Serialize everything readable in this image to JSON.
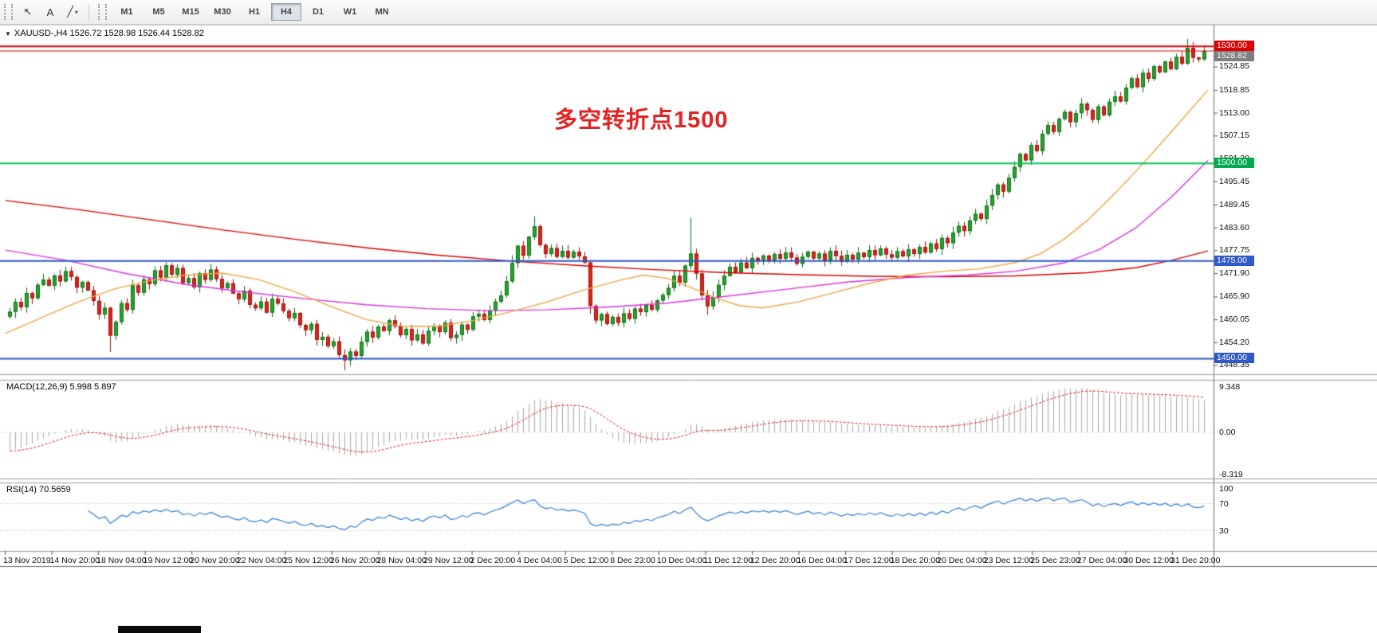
{
  "toolbar": {
    "tools": [
      {
        "name": "cursor-tool",
        "icon": "cursor-icon",
        "glyph": "↖"
      },
      {
        "name": "text-label-tool",
        "icon": "text-icon",
        "glyph": "A"
      },
      {
        "name": "draw-tools",
        "icon": "trendline-icon",
        "glyph": "╱",
        "caret": "▾"
      }
    ],
    "timeframes": [
      "M1",
      "M5",
      "M15",
      "M30",
      "H1",
      "H4",
      "D1",
      "W1",
      "MN"
    ],
    "selected_timeframe": "H4"
  },
  "chart": {
    "title": "XAUUSD-,H4  1526.72 1528.98 1526.44 1528.82",
    "annotation_text": "多空转折点1500",
    "annotation_color": "#e32222",
    "macd_label": "MACD(12,26,9) 5.998 5.897",
    "rsi_label": "RSI(14) 70.5659"
  },
  "chart_data": {
    "type": "candlestick",
    "symbol": "XAUUSD",
    "timeframe": "H4",
    "ohlc_display": {
      "open": "1526.72",
      "high": "1528.98",
      "low": "1526.44",
      "close": "1528.82"
    },
    "ylim": [
      1446,
      1532.5
    ],
    "closes": [
      1462.0,
      1464.5,
      1463.2,
      1466.8,
      1465.5,
      1468.9,
      1470.2,
      1468.7,
      1471.3,
      1469.8,
      1472.4,
      1470.9,
      1468.2,
      1469.6,
      1467.5,
      1464.8,
      1461.3,
      1463.0,
      1455.9,
      1459.4,
      1464.2,
      1462.5,
      1468.8,
      1466.9,
      1470.3,
      1469.1,
      1472.6,
      1470.8,
      1473.9,
      1471.5,
      1473.2,
      1469.4,
      1470.6,
      1468.3,
      1471.9,
      1470.2,
      1472.8,
      1470.4,
      1468.1,
      1469.3,
      1466.7,
      1465.2,
      1467.4,
      1463.8,
      1462.9,
      1464.6,
      1461.8,
      1465.3,
      1464.1,
      1462.2,
      1460.4,
      1461.7,
      1458.6,
      1457.3,
      1458.9,
      1454.8,
      1455.6,
      1453.2,
      1454.4,
      1450.9,
      1449.6,
      1451.8,
      1450.7,
      1454.3,
      1456.9,
      1455.4,
      1458.2,
      1457.1,
      1459.8,
      1458.3,
      1456.0,
      1457.6,
      1454.7,
      1456.2,
      1453.9,
      1457.1,
      1458.4,
      1456.8,
      1459.2,
      1455.3,
      1456.1,
      1458.7,
      1457.4,
      1460.8,
      1461.5,
      1459.9,
      1462.3,
      1464.6,
      1466.2,
      1469.8,
      1474.5,
      1478.9,
      1476.4,
      1481.2,
      1483.9,
      1479.1,
      1476.8,
      1478.3,
      1476.1,
      1477.6,
      1475.9,
      1477.4,
      1476.2,
      1474.6,
      1463.5,
      1459.8,
      1461.4,
      1458.9,
      1460.7,
      1459.2,
      1461.6,
      1460.2,
      1462.8,
      1461.9,
      1463.7,
      1462.5,
      1464.9,
      1466.3,
      1468.1,
      1471.2,
      1469.5,
      1473.8,
      1476.9,
      1471.8,
      1466.2,
      1463.4,
      1465.8,
      1468.9,
      1471.2,
      1473.5,
      1472.1,
      1474.6,
      1473.2,
      1475.8,
      1474.9,
      1476.4,
      1475.1,
      1476.8,
      1475.6,
      1477.2,
      1475.9,
      1474.3,
      1476.1,
      1477.4,
      1475.7,
      1476.9,
      1475.2,
      1477.6,
      1476.3,
      1474.8,
      1476.6,
      1475.4,
      1477.1,
      1476.0,
      1477.8,
      1476.5,
      1478.2,
      1476.7,
      1475.9,
      1477.5,
      1476.2,
      1478.0,
      1476.8,
      1478.6,
      1477.2,
      1479.5,
      1478.1,
      1480.9,
      1479.6,
      1482.3,
      1484.0,
      1482.7,
      1485.4,
      1487.1,
      1485.8,
      1489.2,
      1491.9,
      1494.6,
      1492.8,
      1496.3,
      1499.1,
      1502.4,
      1500.8,
      1504.7,
      1503.2,
      1507.6,
      1509.8,
      1508.1,
      1511.4,
      1513.2,
      1510.6,
      1512.9,
      1515.3,
      1513.7,
      1511.2,
      1514.6,
      1512.4,
      1515.8,
      1517.2,
      1515.9,
      1519.4,
      1521.8,
      1519.6,
      1523.2,
      1521.7,
      1524.9,
      1523.4,
      1526.1,
      1524.2,
      1527.3,
      1525.6,
      1529.6,
      1527.1,
      1526.72,
      1528.82
    ],
    "upper_wick_overrides": {
      "90": 2.0,
      "94": 2.6,
      "122": 9.2,
      "211": 2.3
    },
    "lower_wick_overrides": {
      "18": 4.2,
      "60": 2.6,
      "104": 2.0,
      "125": 2.2
    },
    "candle_colors": {
      "up": "#2aa22e",
      "up_border": "#0c6e14",
      "down": "#dc241c",
      "down_border": "#9d120c"
    },
    "hlines": [
      {
        "price": 1530.0,
        "label": "1530.00",
        "line_color": "#e00000",
        "badge_bg": "#e00000",
        "line_width": 2
      },
      {
        "price": 1528.82,
        "label": "1528.82",
        "line_color": "#e00000",
        "badge_bg": "#7f7f7f",
        "line_width": 1
      },
      {
        "price": 1500.0,
        "label": "1500.00",
        "line_color": "#00c455",
        "badge_bg": "#00a94f",
        "line_width": 2
      },
      {
        "price": 1475.0,
        "label": "1475.00",
        "line_color": "#2e59c9",
        "badge_bg": "#2e59c9",
        "line_width": 2
      },
      {
        "price": 1450.0,
        "label": "1450.00",
        "line_color": "#2e59c9",
        "badge_bg": "#2e59c9",
        "line_width": 2
      }
    ],
    "price_scale_labels": [
      "1524.85",
      "1518.85",
      "1513.00",
      "1507.15",
      "1501.30",
      "1495.45",
      "1489.45",
      "1483.60",
      "1477.75",
      "1471.90",
      "1465.90",
      "1460.05",
      "1454.20",
      "1448.35"
    ],
    "time_labels": [
      "13 Nov 2019",
      "14 Nov 20:00",
      "18 Nov 04:00",
      "19 Nov 12:00",
      "20 Nov 20:00",
      "22 Nov 04:00",
      "25 Nov 12:00",
      "26 Nov 20:00",
      "28 Nov 04:00",
      "29 Nov 12:00",
      "2 Dec 20:00",
      "4 Dec 04:00",
      "5 Dec 12:00",
      "8 Dec 23:00",
      "10 Dec 04:00",
      "11 Dec 12:00",
      "12 Dec 20:00",
      "16 Dec 04:00",
      "17 Dec 12:00",
      "18 Dec 20:00",
      "20 Dec 04:00",
      "23 Dec 12:00",
      "25 Dec 23:00",
      "27 Dec 04:00",
      "30 Dec 12:00",
      "31 Dec 20:00"
    ],
    "moving_averages": [
      {
        "name": "slow-ma",
        "color": "#e00000",
        "points": [
          [
            0,
            1490.5
          ],
          [
            0.06,
            1488.2
          ],
          [
            0.12,
            1485.6
          ],
          [
            0.18,
            1483.0
          ],
          [
            0.24,
            1480.6
          ],
          [
            0.3,
            1478.4
          ],
          [
            0.36,
            1476.5
          ],
          [
            0.42,
            1475.0
          ],
          [
            0.48,
            1473.8
          ],
          [
            0.54,
            1472.8
          ],
          [
            0.6,
            1472.0
          ],
          [
            0.66,
            1471.5
          ],
          [
            0.72,
            1471.1
          ],
          [
            0.78,
            1471.0
          ],
          [
            0.84,
            1471.2
          ],
          [
            0.9,
            1472.0
          ],
          [
            0.94,
            1473.3
          ],
          [
            0.97,
            1475.2
          ],
          [
            1,
            1477.6
          ]
        ]
      },
      {
        "name": "mid-ma",
        "color": "#dd33dd",
        "points": [
          [
            0,
            1477.8
          ],
          [
            0.05,
            1475.2
          ],
          [
            0.1,
            1471.8
          ],
          [
            0.15,
            1469.0
          ],
          [
            0.2,
            1467.0
          ],
          [
            0.25,
            1465.3
          ],
          [
            0.3,
            1463.8
          ],
          [
            0.35,
            1462.8
          ],
          [
            0.4,
            1462.3
          ],
          [
            0.45,
            1462.5
          ],
          [
            0.5,
            1463.2
          ],
          [
            0.55,
            1464.2
          ],
          [
            0.6,
            1466.0
          ],
          [
            0.65,
            1467.8
          ],
          [
            0.7,
            1469.6
          ],
          [
            0.75,
            1470.8
          ],
          [
            0.8,
            1471.4
          ],
          [
            0.84,
            1472.4
          ],
          [
            0.88,
            1474.5
          ],
          [
            0.91,
            1478.0
          ],
          [
            0.94,
            1483.5
          ],
          [
            0.97,
            1491.5
          ],
          [
            1,
            1500.8
          ]
        ]
      },
      {
        "name": "fast-ma",
        "color": "#eda741",
        "points": [
          [
            0,
            1456.5
          ],
          [
            0.03,
            1460.5
          ],
          [
            0.06,
            1464.5
          ],
          [
            0.09,
            1467.8
          ],
          [
            0.12,
            1470.0
          ],
          [
            0.15,
            1471.4
          ],
          [
            0.18,
            1471.9
          ],
          [
            0.21,
            1470.3
          ],
          [
            0.24,
            1467.2
          ],
          [
            0.27,
            1463.4
          ],
          [
            0.3,
            1460.0
          ],
          [
            0.33,
            1458.3
          ],
          [
            0.36,
            1458.3
          ],
          [
            0.39,
            1459.8
          ],
          [
            0.42,
            1462.0
          ],
          [
            0.45,
            1464.5
          ],
          [
            0.48,
            1467.5
          ],
          [
            0.51,
            1470.0
          ],
          [
            0.53,
            1471.4
          ],
          [
            0.55,
            1470.6
          ],
          [
            0.57,
            1468.2
          ],
          [
            0.59,
            1465.6
          ],
          [
            0.61,
            1463.6
          ],
          [
            0.63,
            1463.0
          ],
          [
            0.66,
            1464.6
          ],
          [
            0.69,
            1467.0
          ],
          [
            0.72,
            1469.4
          ],
          [
            0.75,
            1471.4
          ],
          [
            0.78,
            1472.4
          ],
          [
            0.81,
            1473.0
          ],
          [
            0.84,
            1474.6
          ],
          [
            0.86,
            1476.8
          ],
          [
            0.88,
            1480.5
          ],
          [
            0.9,
            1485.5
          ],
          [
            0.92,
            1491.5
          ],
          [
            0.94,
            1498.0
          ],
          [
            0.96,
            1504.8
          ],
          [
            0.98,
            1511.8
          ],
          [
            1,
            1518.8
          ]
        ]
      }
    ],
    "macd": {
      "params": [
        12,
        26,
        9
      ],
      "values_display": [
        "5.998",
        "5.897"
      ],
      "scale": [
        "9.348",
        "0.00",
        "-8.319"
      ],
      "range": [
        -8.319,
        9.348
      ],
      "hist_color": "#a8a8a8",
      "signal_color": "#e02020"
    },
    "rsi": {
      "period": 14,
      "value_display": "70.5659",
      "levels": [
        100,
        70,
        30
      ],
      "range": [
        0,
        100
      ],
      "color": "#2f7ed8"
    }
  },
  "bottom": {
    "black_bar": true
  }
}
